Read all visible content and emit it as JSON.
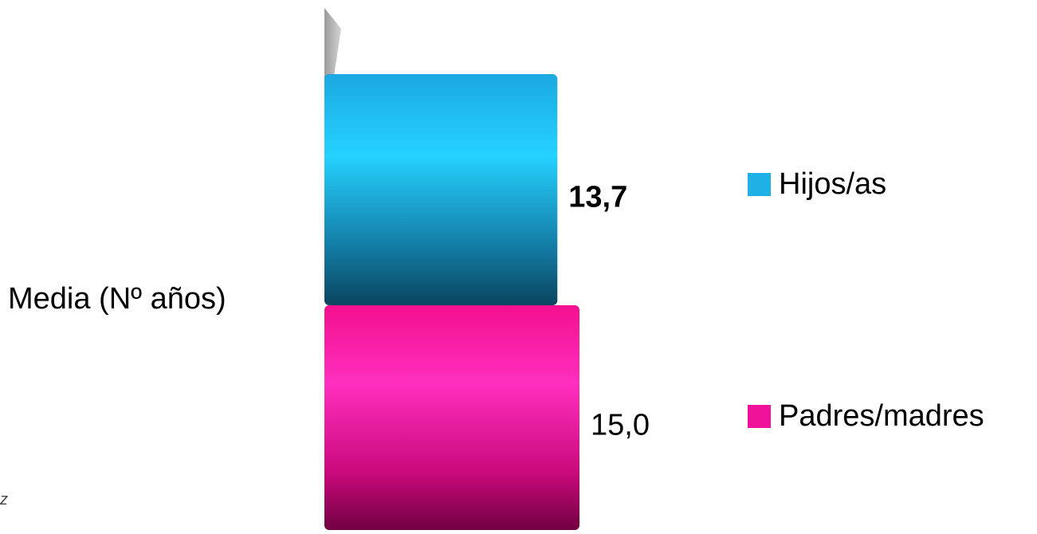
{
  "chart_data": {
    "type": "bar",
    "orientation": "horizontal",
    "categories": [
      "Media (Nº años)"
    ],
    "series": [
      {
        "name": "Hijos/as",
        "values": [
          13.7
        ],
        "label": "13,7",
        "color": "#1fb0e6",
        "label_bold": true
      },
      {
        "name": "Padres/madres",
        "values": [
          15.0
        ],
        "label": "15,0",
        "color": "#f0129a",
        "label_bold": false
      }
    ],
    "xlim": [
      0,
      15.0
    ],
    "grid": false,
    "legend_position": "right"
  },
  "corner_mark": "z"
}
